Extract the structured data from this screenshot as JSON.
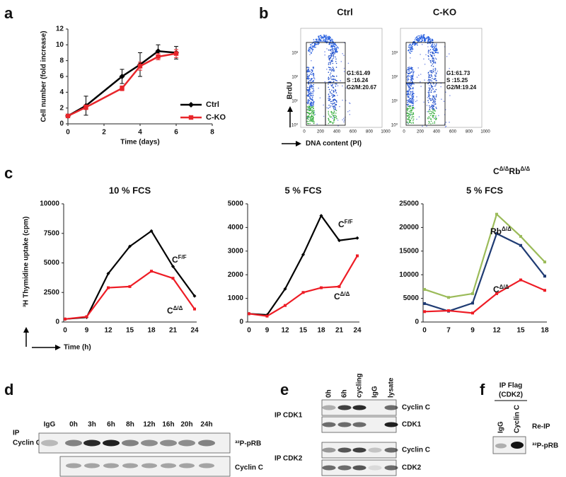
{
  "panel_labels": [
    "a",
    "b",
    "c",
    "d",
    "e",
    "f"
  ],
  "chart_data": [
    {
      "type": "line",
      "xlabel": "Time (days)",
      "ylabel": "Cell number (fold increase)",
      "x": [
        0,
        1,
        3,
        4,
        5,
        6
      ],
      "xlim": [
        0,
        8
      ],
      "xticks": [
        0,
        2,
        4,
        6,
        8
      ],
      "ylim": [
        0,
        12
      ],
      "yticks": [
        0,
        2,
        4,
        6,
        8,
        10,
        12
      ],
      "legend": "lower right",
      "series": [
        {
          "name": "Ctrl",
          "color": "#000000",
          "marker": "diamond",
          "values": [
            1,
            2.3,
            6,
            7.5,
            9.2,
            9
          ],
          "errors": [
            0.2,
            1.2,
            0.9,
            1.5,
            0.8,
            0.8
          ]
        },
        {
          "name": "C-KO",
          "color": "#e8262b",
          "marker": "square",
          "values": [
            1,
            2.1,
            4.5,
            7.3,
            8.5,
            8.9
          ],
          "errors": [
            0.2,
            0.3,
            0.3,
            0.5,
            0.4,
            0.5
          ]
        }
      ]
    },
    {
      "type": "line",
      "title": "10 % FCS",
      "xlabel": "Time (h)",
      "ylabel": "³H Thymidine uptake (cpm)",
      "categories": [
        0,
        9,
        12,
        15,
        18,
        21,
        24
      ],
      "ylim": [
        0,
        10000
      ],
      "yticks": [
        0,
        2500,
        5000,
        7500,
        10000
      ],
      "series": [
        {
          "label": [
            {
              "t": "C"
            },
            {
              "t": "F/F",
              "sup": true
            }
          ],
          "color": "#000000",
          "marker": "diamond",
          "values": [
            250,
            400,
            4100,
            6400,
            7700,
            4700,
            2200
          ]
        },
        {
          "label": [
            {
              "t": "C"
            },
            {
              "t": "Δ/Δ",
              "sup": true
            }
          ],
          "color": "#ee1c25",
          "marker": "square",
          "values": [
            250,
            450,
            2900,
            3000,
            4300,
            3700,
            1100
          ]
        }
      ]
    },
    {
      "type": "line",
      "title": "5 % FCS",
      "categories": [
        0,
        9,
        12,
        15,
        18,
        21,
        24
      ],
      "ylim": [
        0,
        5000
      ],
      "yticks": [
        0,
        1000,
        2000,
        3000,
        4000,
        5000
      ],
      "series": [
        {
          "label": [
            {
              "t": "C"
            },
            {
              "t": "F/F",
              "sup": true
            }
          ],
          "color": "#000000",
          "marker": "diamond",
          "values": [
            350,
            300,
            1400,
            2850,
            4500,
            3450,
            3550
          ]
        },
        {
          "label": [
            {
              "t": "C"
            },
            {
              "t": "Δ/Δ",
              "sup": true
            }
          ],
          "color": "#ee1c25",
          "marker": "square",
          "values": [
            350,
            250,
            700,
            1250,
            1450,
            1500,
            2800
          ]
        }
      ]
    },
    {
      "type": "line",
      "title": "5 % FCS",
      "categories": [
        0,
        7,
        9,
        12,
        15,
        18
      ],
      "ylim": [
        0,
        25000
      ],
      "yticks": [
        0,
        5000,
        10000,
        15000,
        20000,
        25000
      ],
      "series": [
        {
          "label": [
            {
              "t": "C"
            },
            {
              "t": "Δ/Δ",
              "sup": true
            },
            {
              "t": "Rb"
            },
            {
              "t": "Δ/Δ",
              "sup": true
            }
          ],
          "color": "#9bbb59",
          "marker": "square",
          "values": [
            6900,
            5200,
            6000,
            22800,
            18100,
            12700
          ]
        },
        {
          "label": [
            {
              "t": "Rb"
            },
            {
              "t": "Δ/Δ",
              "sup": true
            }
          ],
          "color": "#1f3b73",
          "marker": "square",
          "values": [
            3900,
            2300,
            4000,
            18700,
            16200,
            9700
          ]
        },
        {
          "label": [
            {
              "t": "C"
            },
            {
              "t": "Δ/Δ",
              "sup": true
            }
          ],
          "color": "#ee1c25",
          "marker": "square",
          "values": [
            2200,
            2400,
            1900,
            6000,
            8900,
            6700
          ]
        }
      ]
    }
  ],
  "flow": {
    "xlabel": "DNA content (PI)",
    "ylabel": "BrdU",
    "xticks": [
      0,
      200,
      400,
      600,
      800,
      1000
    ],
    "yticks": [
      "10⁰",
      "10¹",
      "10²",
      "10³"
    ],
    "plots": [
      {
        "title": "Ctrl",
        "stats": [
          "G1:61.49",
          "S :16.24",
          "G2/M:20.67"
        ]
      },
      {
        "title": "C-KO",
        "stats": [
          "G1:61.73",
          "S :15.25",
          "G2/M:19.24"
        ]
      }
    ]
  },
  "blot_d": {
    "ip": [
      "IP",
      "Cyclin C"
    ],
    "lanes": [
      "IgG",
      "0h",
      "3h",
      "6h",
      "8h",
      "12h",
      "16h",
      "20h",
      "24h"
    ],
    "rows": [
      "³²P-pRB",
      "Cyclin C"
    ]
  },
  "blot_e": {
    "lanes": [
      "0h",
      "6h",
      "cycling",
      "IgG",
      "lysate"
    ],
    "groups": [
      {
        "ip": "IP CDK1",
        "rows": [
          "Cyclin C",
          "CDK1"
        ]
      },
      {
        "ip": "IP CDK2",
        "rows": [
          "Cyclin C",
          "CDK2"
        ]
      }
    ]
  },
  "blot_f": {
    "ip": [
      "IP Flag",
      "(CDK2)"
    ],
    "lanes": [
      "IgG",
      "Cyclin C"
    ],
    "reip": "Re-IP",
    "row": "³²P-pRB"
  }
}
